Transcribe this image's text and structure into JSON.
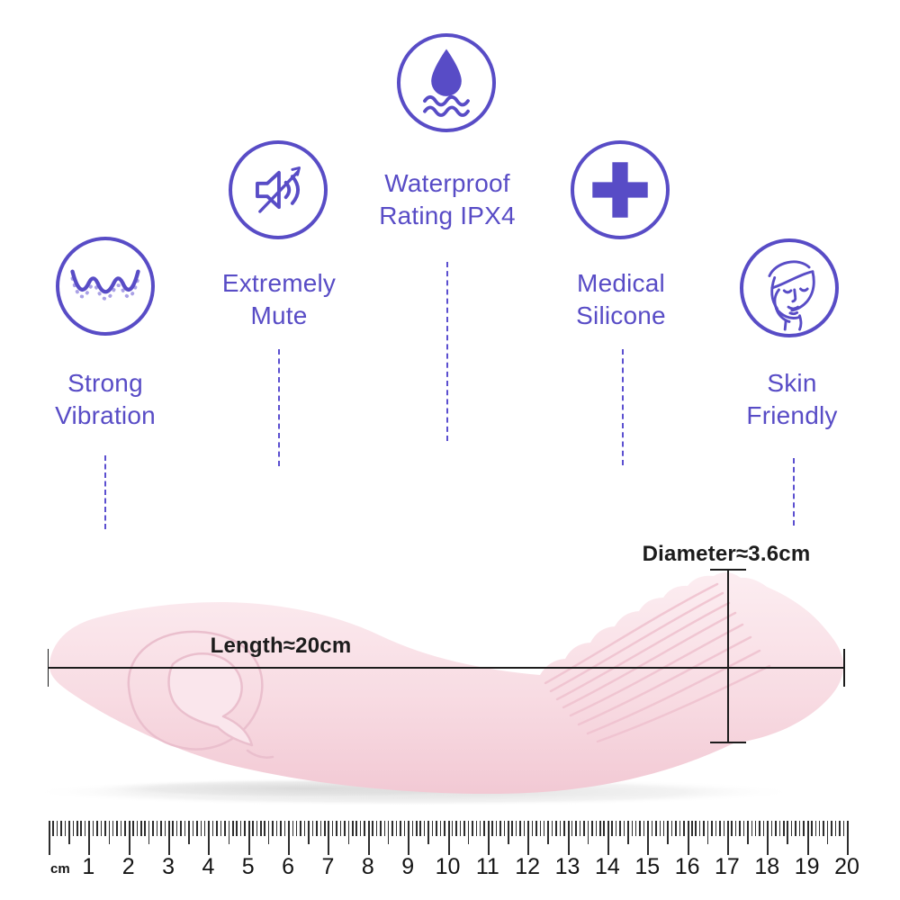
{
  "title": "Product feature infographic",
  "colors": {
    "accent_purple": "#584cc6",
    "dash_purple": "#5b4fd0",
    "label_dark": "#1c1c1c",
    "product_pink": "#f8dce3",
    "product_pink_shade": "#f0c3d0",
    "ruler_tick": "#2d2d2d"
  },
  "features": [
    {
      "id": "strong-vibration",
      "icon": "vibration-wave-icon",
      "label_lines": [
        "Strong",
        "Vibration"
      ]
    },
    {
      "id": "extremely-mute",
      "icon": "muted-speaker-icon",
      "label_lines": [
        "Extremely",
        "Mute"
      ]
    },
    {
      "id": "waterproof",
      "icon": "water-drop-icon",
      "label_lines": [
        "Waterproof",
        "Rating IPX4"
      ]
    },
    {
      "id": "medical-silicone",
      "icon": "medical-cross-icon",
      "label_lines": [
        "Medical",
        "Silicone"
      ]
    },
    {
      "id": "skin-friendly",
      "icon": "face-care-icon",
      "label_lines": [
        "Skin",
        "Friendly"
      ]
    }
  ],
  "measurements": {
    "length_label": "Length≈20cm",
    "diameter_label": "Diameter≈3.6cm"
  },
  "ruler": {
    "unit_label": "cm",
    "cm_count": 20,
    "numbers": [
      "1",
      "2",
      "3",
      "4",
      "5",
      "6",
      "7",
      "8",
      "9",
      "10",
      "11",
      "12",
      "13",
      "14",
      "15",
      "16",
      "17",
      "18",
      "19",
      "20"
    ]
  }
}
